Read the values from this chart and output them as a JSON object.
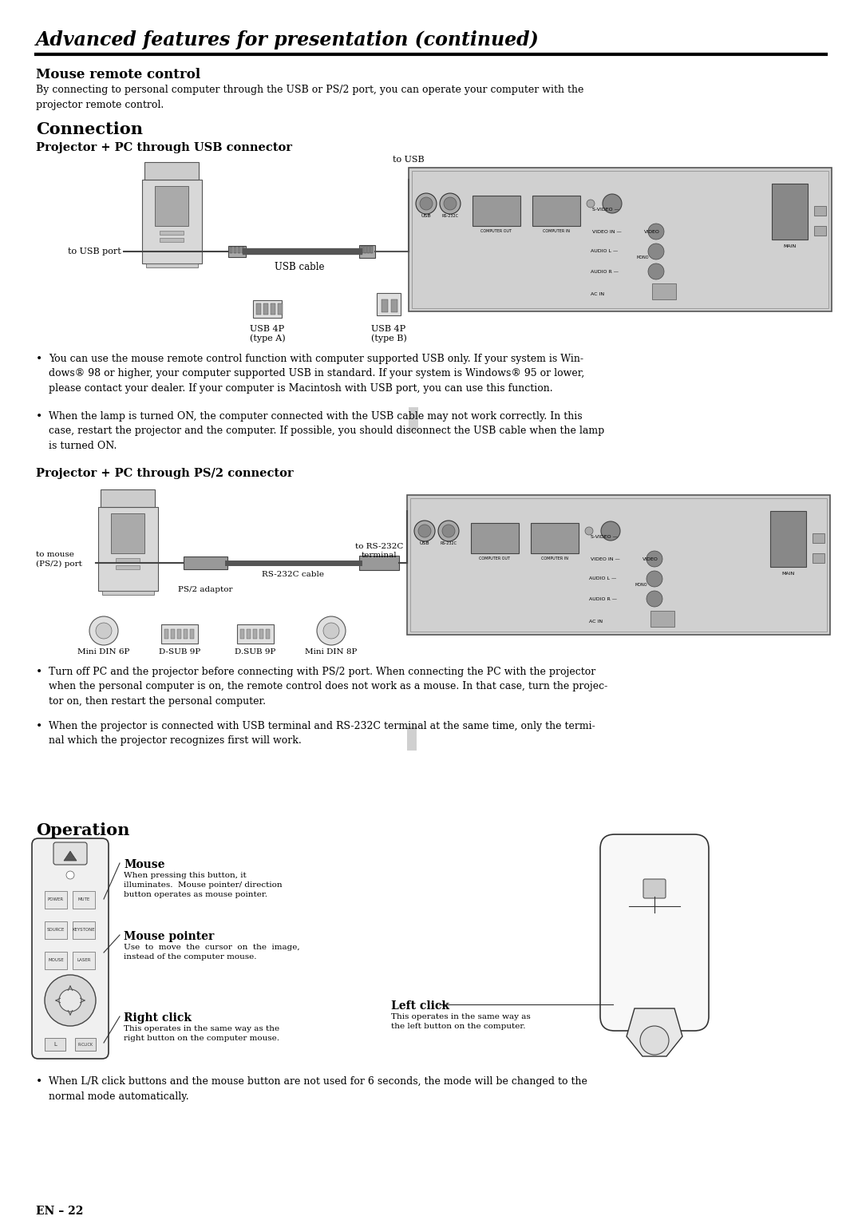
{
  "title": "Advanced features for presentation (continued)",
  "bg_color": "#ffffff",
  "text_color": "#000000",
  "section1_heading": "Mouse remote control",
  "section1_body": "By connecting to personal computer through the USB or PS/2 port, you can operate your computer with the\nprojector remote control.",
  "section2_heading": "Connection",
  "subsection1": "Projector + PC through USB connector",
  "usb_labels": {
    "to_usb": "to USB",
    "to_usb_port": "to USB port",
    "usb_cable": "USB cable",
    "usb_4p_a": "USB 4P\n(type A)",
    "usb_4p_b": "USB 4P\n(type B)"
  },
  "bullet1": "You can use the mouse remote control function with computer supported USB only. If your system is Win-\ndows® 98 or higher, your computer supported USB in standard. If your system is Windows® 95 or lower,\nplease contact your dealer. If your computer is Macintosh with USB port, you can use this function.",
  "bullet2": "When the lamp is turned ON, the computer connected with the USB cable may not work correctly. In this\ncase, restart the projector and the computer. If possible, you should disconnect the USB cable when the lamp\nis turned ON.",
  "subsection2": "Projector + PC through PS/2 connector",
  "ps2_labels": {
    "to_mouse": "to mouse\n(PS/2) port",
    "ps2_adapter": "PS/2 adaptor",
    "rs232c_cable": "RS-232C cable",
    "to_rs232c": "to RS-232C\nterminal",
    "mini_din_6p": "Mini DIN 6P",
    "d_sub_9p": "D-SUB 9P",
    "d_sub_9p2": "D.SUB 9P",
    "mini_din_8p": "Mini DIN 8P"
  },
  "ps2_bullet1": "Turn off PC and the projector before connecting with PS/2 port. When connecting the PC with the projector\nwhen the personal computer is on, the remote control does not work as a mouse. In that case, turn the projec-\ntor on, then restart the personal computer.",
  "ps2_bullet2": "When the projector is connected with USB terminal and RS-232C terminal at the same time, only the termi-\nnal which the projector recognizes first will work.",
  "op_heading": "Operation",
  "op_mouse_lbl": "Mouse",
  "op_mouse_txt": "When pressing this button, it\nilluminates.  Mouse pointer/ direction\nbutton operates as mouse pointer.",
  "op_mp_lbl": "Mouse pointer",
  "op_mp_txt": "Use  to  move  the  cursor  on  the  image,\ninstead of the computer mouse.",
  "op_rc_lbl": "Right click",
  "op_rc_txt": "This operates in the same way as the\nright button on the computer mouse.",
  "op_lc_lbl": "Left click",
  "op_lc_txt": "This operates in the same way as\nthe left button on the computer.",
  "op_bullet": "When L/R click buttons and the mouse button are not used for 6 seconds, the mode will be changed to the\nnormal mode automatically.",
  "page_number": "EN – 22"
}
